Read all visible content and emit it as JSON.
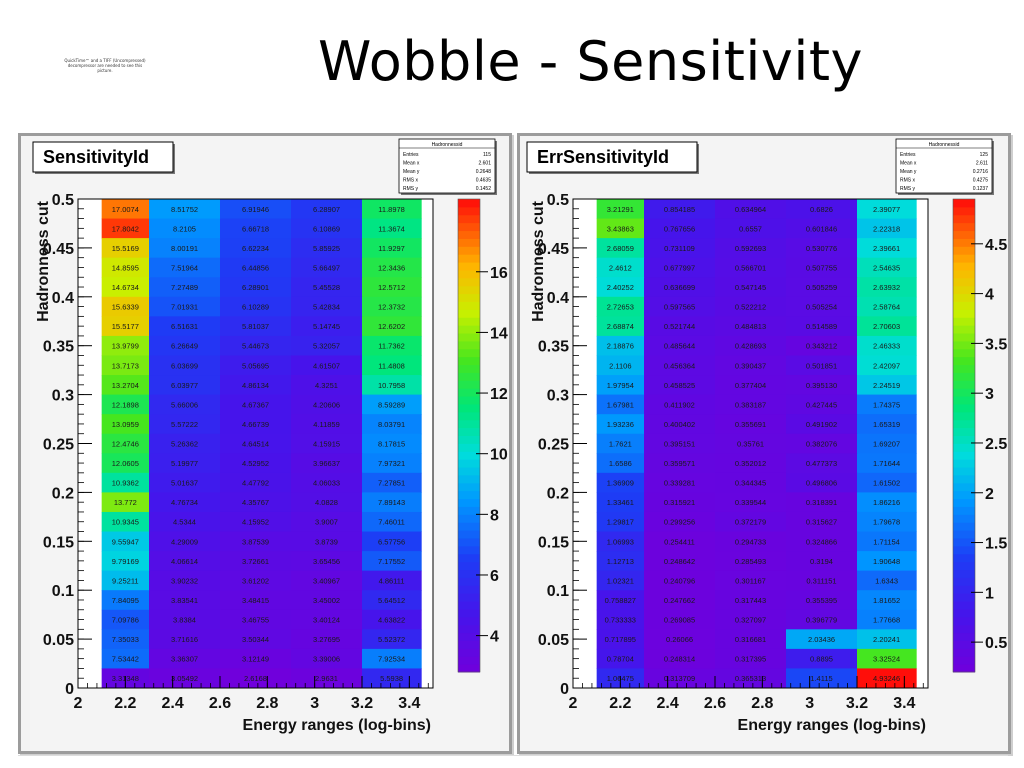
{
  "slide": {
    "title": "Wobble - Sensitivity",
    "quicktime_note": "QuickTime™ and a TIFF (Uncompressed) decompressor are needed to see this picture."
  },
  "chart_data": [
    {
      "type": "heatmap",
      "title": "SensitivityId",
      "stats_title": "Hadronnessid",
      "stats": [
        {
          "k": "Entries",
          "v": "115"
        },
        {
          "k": "Mean x",
          "v": "2.601"
        },
        {
          "k": "Mean y",
          "v": "0.2648"
        },
        {
          "k": "RMS x",
          "v": "0.4635"
        },
        {
          "k": "RMS y",
          "v": "0.1452"
        }
      ],
      "xlabel": "Energy ranges (log-bins)",
      "ylabel": "Hadronness cut",
      "xlim": [
        2,
        3.5
      ],
      "ylim": [
        0,
        0.5
      ],
      "x_edges": [
        2.1,
        2.3,
        2.6,
        2.9,
        3.2,
        3.45
      ],
      "y_step": 0.02,
      "x_ticks": [
        "2",
        "2.2",
        "2.4",
        "2.6",
        "2.8",
        "3",
        "3.2",
        "3.4"
      ],
      "x_tick_values": [
        2,
        2.2,
        2.4,
        2.6,
        2.8,
        3,
        3.2,
        3.4
      ],
      "y_ticks": [
        "0",
        "0.05",
        "0.1",
        "0.15",
        "0.2",
        "0.25",
        "0.3",
        "0.35",
        "0.4",
        "0.45",
        "0.5"
      ],
      "y_tick_values": [
        0,
        0.05,
        0.1,
        0.15,
        0.2,
        0.25,
        0.3,
        0.35,
        0.4,
        0.45,
        0.5
      ],
      "z_range": [
        2.8,
        18.4
      ],
      "z_ticks": [
        "4",
        "6",
        "8",
        "10",
        "12",
        "14",
        "16"
      ],
      "z_tick_values": [
        4,
        6,
        8,
        10,
        12,
        14,
        16
      ],
      "rows": [
        [
          "17.0074",
          "8.51752",
          "6.91946",
          "6.28907",
          "11.8978"
        ],
        [
          "17.8042",
          "8.2105",
          "6.66718",
          "6.10869",
          "11.3674"
        ],
        [
          "15.5169",
          "8.00191",
          "6.62234",
          "5.85925",
          "11.9297"
        ],
        [
          "14.8595",
          "7.51964",
          "6.44856",
          "5.66497",
          "12.3436"
        ],
        [
          "14.6734",
          "7.27489",
          "6.28901",
          "5.45528",
          "12.5712"
        ],
        [
          "15.6339",
          "7.01931",
          "6.10289",
          "5.42834",
          "12.3732"
        ],
        [
          "15.5177",
          "6.51631",
          "5.81037",
          "5.14745",
          "12.6202"
        ],
        [
          "13.9799",
          "6.26649",
          "5.44673",
          "5.32057",
          "11.7362"
        ],
        [
          "13.7173",
          "6.03699",
          "5.05695",
          "4.61507",
          "11.4808"
        ],
        [
          "13.2704",
          "6.03977",
          "4.86134",
          "4.3251",
          "10.7958"
        ],
        [
          "12.1898",
          "5.66006",
          "4.67367",
          "4.20606",
          "8.59289"
        ],
        [
          "13.0959",
          "5.57222",
          "4.66739",
          "4.11859",
          "8.03791"
        ],
        [
          "12.4746",
          "5.26362",
          "4.64514",
          "4.15915",
          "8.17815"
        ],
        [
          "12.0605",
          "5.19977",
          "4.52952",
          "3.96637",
          "7.97321"
        ],
        [
          "10.9362",
          "5.01637",
          "4.47792",
          "4.06033",
          "7.27851"
        ],
        [
          "13.772",
          "4.76734",
          "4.35767",
          "4.0828",
          "7.89143"
        ],
        [
          "10.9345",
          "4.5344",
          "4.15952",
          "3.9007",
          "7.46011"
        ],
        [
          "9.55947",
          "4.29009",
          "3.87539",
          "3.8739",
          "6.57756"
        ],
        [
          "9.79169",
          "4.06614",
          "3.72661",
          "3.65456",
          "7.17552"
        ],
        [
          "9.25211",
          "3.90232",
          "3.61202",
          "3.40967",
          "4.86111"
        ],
        [
          "7.84095",
          "3.83541",
          "3.48415",
          "3.45002",
          "5.64512"
        ],
        [
          "7.09786",
          "3.8384",
          "3.46755",
          "3.40124",
          "4.63822"
        ],
        [
          "7.35033",
          "3.71616",
          "3.50344",
          "3.27695",
          "5.52372"
        ],
        [
          "7.53442",
          "3.36307",
          "3.12149",
          "3.39006",
          "7.92534"
        ],
        [
          "3.31348",
          "3.05492",
          "2.6168",
          "2.9631",
          "5.5938"
        ]
      ],
      "colors": {
        "frame_fill": "#ffffff",
        "title_box": "#ffffff",
        "low": "#6f0fd0",
        "high": "#ff0000"
      }
    },
    {
      "type": "heatmap",
      "title": "ErrSensitivityId",
      "stats_title": "Hadronnessid",
      "stats": [
        {
          "k": "Entries",
          "v": "125"
        },
        {
          "k": "Mean x",
          "v": "2.611"
        },
        {
          "k": "Mean y",
          "v": "0.2716"
        },
        {
          "k": "RMS x",
          "v": "0.4275"
        },
        {
          "k": "RMS y",
          "v": "0.1237"
        }
      ],
      "xlabel": "Energy ranges (log-bins)",
      "ylabel": "Hadronness cut",
      "xlim": [
        2,
        3.5
      ],
      "ylim": [
        0,
        0.5
      ],
      "x_edges": [
        2.1,
        2.3,
        2.6,
        2.9,
        3.2,
        3.45
      ],
      "y_step": 0.02,
      "x_ticks": [
        "2",
        "2.2",
        "2.4",
        "2.6",
        "2.8",
        "3",
        "3.2",
        "3.4"
      ],
      "x_tick_values": [
        2,
        2.2,
        2.4,
        2.6,
        2.8,
        3,
        3.2,
        3.4
      ],
      "y_ticks": [
        "0",
        "0.05",
        "0.1",
        "0.15",
        "0.2",
        "0.25",
        "0.3",
        "0.35",
        "0.4",
        "0.45",
        "0.5"
      ],
      "y_tick_values": [
        0,
        0.05,
        0.1,
        0.15,
        0.2,
        0.25,
        0.3,
        0.35,
        0.4,
        0.45,
        0.5
      ],
      "z_range": [
        0.2,
        4.95
      ],
      "z_ticks": [
        "0.5",
        "1",
        "1.5",
        "2",
        "2.5",
        "3",
        "3.5",
        "4",
        "4.5"
      ],
      "z_tick_values": [
        0.5,
        1,
        1.5,
        2,
        2.5,
        3,
        3.5,
        4,
        4.5
      ],
      "rows": [
        [
          "3.21291",
          "0.854185",
          "0.634964",
          "0.6826",
          "2.39077"
        ],
        [
          "3.43863",
          "0.767656",
          "0.6557",
          "0.601846",
          "2.22318"
        ],
        [
          "2.68059",
          "0.731109",
          "0.592693",
          "0.530776",
          "2.39661"
        ],
        [
          "2.4612",
          "0.677997",
          "0.566701",
          "0.507755",
          "2.54635"
        ],
        [
          "2.40252",
          "0.636699",
          "0.547145",
          "0.505259",
          "2.63932"
        ],
        [
          "2.72653",
          "0.597565",
          "0.522212",
          "0.505254",
          "2.58764"
        ],
        [
          "2.68874",
          "0.521744",
          "0.484813",
          "0.514589",
          "2.70603"
        ],
        [
          "2.18876",
          "0.485644",
          "0.428693",
          "0.343212",
          "2.46333"
        ],
        [
          "2.1106",
          "0.456364",
          "0.390437",
          "0.501851",
          "2.42097"
        ],
        [
          "1.97954",
          "0.458525",
          "0.377404",
          "0.395130",
          "2.24519"
        ],
        [
          "1.67981",
          "0.411902",
          "0.383187",
          "0.427445",
          "1.74375"
        ],
        [
          "1.93236",
          "0.400402",
          "0.355691",
          "0.491902",
          "1.65319"
        ],
        [
          "1.7621",
          "0.395151",
          "0.35761",
          "0.382076",
          "1.69207"
        ],
        [
          "1.6586",
          "0.359571",
          "0.352012",
          "0.477373",
          "1.71644"
        ],
        [
          "1.36909",
          "0.339281",
          "0.344345",
          "0.496806",
          "1.61502"
        ],
        [
          "1.33461",
          "0.315921",
          "0.339544",
          "0.318391",
          "1.86216"
        ],
        [
          "1.29817",
          "0.299256",
          "0.372179",
          "0.315627",
          "1.79678"
        ],
        [
          "1.06993",
          "0.254411",
          "0.294733",
          "0.324866",
          "1.71154"
        ],
        [
          "1.12713",
          "0.248642",
          "0.285493",
          "0.3194",
          "1.90648"
        ],
        [
          "1.02321",
          "0.240796",
          "0.301167",
          "0.311151",
          "1.6343"
        ],
        [
          "0.758827",
          "0.247662",
          "0.317443",
          "0.355395",
          "1.81652"
        ],
        [
          "0.733333",
          "0.269085",
          "0.327097",
          "0.396779",
          "1.77668"
        ],
        [
          "0.717895",
          "0.26066",
          "0.316681",
          "2.03436",
          "2.20241"
        ],
        [
          "0.78704",
          "0.248314",
          "0.317395",
          "0.8895",
          "3.32524"
        ],
        [
          "1.06475",
          "0.313709",
          "0.365313",
          "1.4115",
          "4.93246"
        ]
      ],
      "colors": {
        "frame_fill": "#ffffff",
        "title_box": "#ffffff",
        "low": "#6f0fd0",
        "high": "#ff0000"
      }
    }
  ]
}
